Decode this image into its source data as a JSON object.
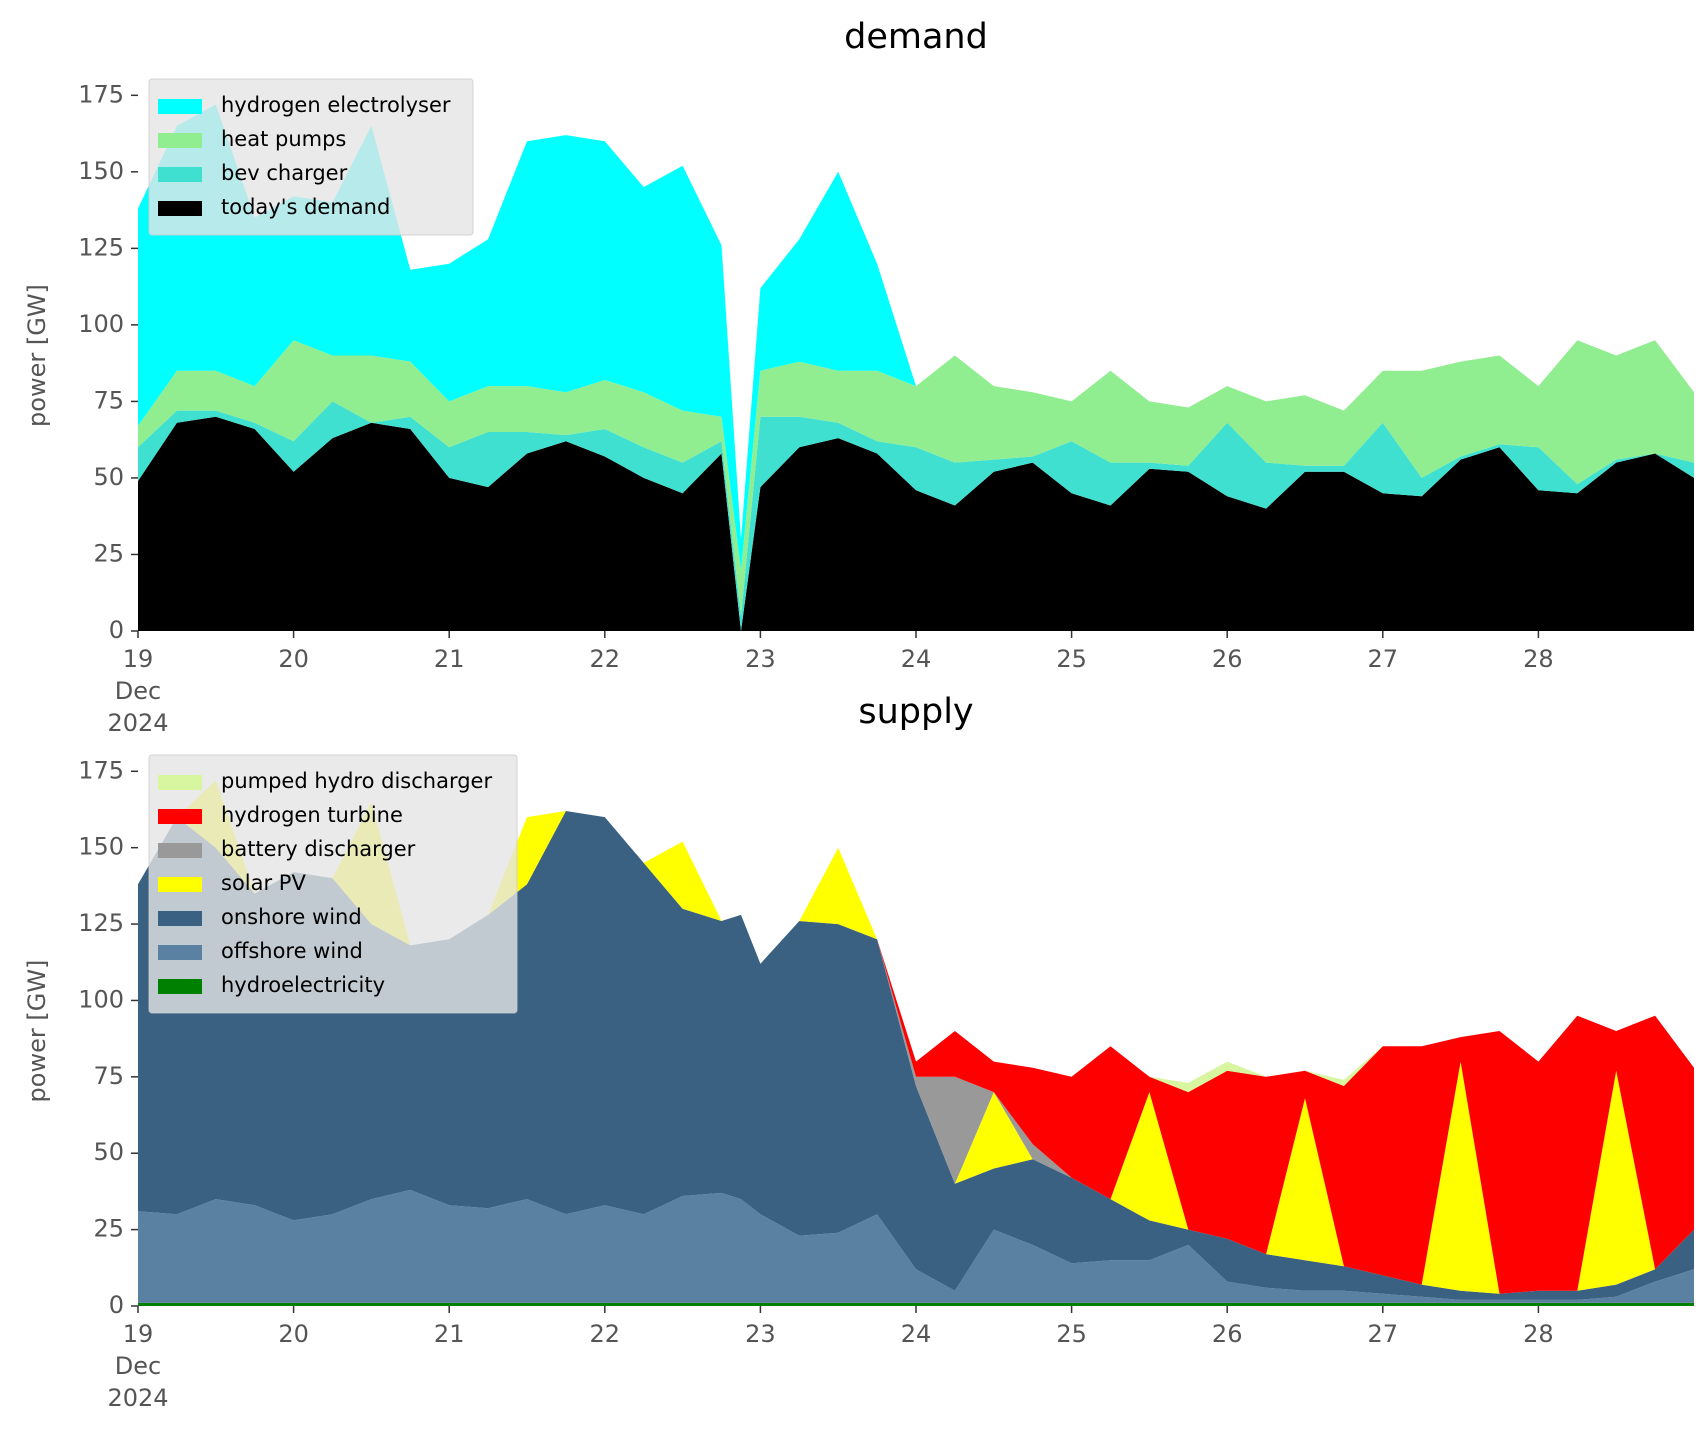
{
  "chart_data": [
    {
      "type": "stacked_area",
      "title": "demand",
      "y_label": "power [GW]",
      "legend": "upper left",
      "x": [
        19,
        19.25,
        19.5,
        19.75,
        20,
        20.25,
        20.5,
        20.75,
        21,
        21.25,
        21.5,
        21.75,
        22,
        22.25,
        22.5,
        22.75,
        22.875,
        23,
        23.25,
        23.5,
        23.75,
        24,
        24.25,
        24.5,
        24.75,
        25,
        25.25,
        25.5,
        25.75,
        26,
        26.25,
        26.5,
        26.75,
        27,
        27.25,
        27.5,
        27.75,
        28,
        28.25,
        28.5,
        28.75,
        29
      ],
      "xlim": [
        19,
        29
      ],
      "xticks": [
        {
          "value": 19,
          "label": "19\nDec\n2024"
        },
        20,
        21,
        22,
        23,
        24,
        25,
        26,
        27,
        28
      ],
      "ylim": [
        0,
        180
      ],
      "yticks": [
        0,
        25,
        50,
        75,
        100,
        125,
        150,
        175
      ],
      "series": [
        {
          "name": "hydrogen electrolyser",
          "color": "#00ffff",
          "values": [
            71,
            80,
            87,
            55,
            47,
            50,
            75,
            30,
            45,
            48,
            80,
            84,
            78,
            67,
            80,
            56,
            10,
            27,
            40,
            65,
            35,
            0,
            0,
            0,
            0,
            0,
            0,
            0,
            0,
            0,
            0,
            0,
            0,
            0,
            0,
            0,
            0,
            0,
            0,
            0,
            0,
            0
          ]
        },
        {
          "name": "heat pumps",
          "color": "#90ee90",
          "values": [
            7,
            13,
            13,
            12,
            33,
            15,
            22,
            18,
            15,
            15,
            15,
            14,
            16,
            18,
            17,
            8,
            15,
            15,
            18,
            17,
            23,
            20,
            35,
            24,
            21,
            13,
            30,
            20,
            19,
            12,
            20,
            23,
            18,
            17,
            35,
            31,
            29,
            20,
            47,
            34,
            37,
            23
          ]
        },
        {
          "name": "bev charger",
          "color": "#40e0d0",
          "values": [
            11,
            4,
            2,
            2,
            10,
            12,
            0,
            4,
            10,
            18,
            7,
            2,
            9,
            10,
            10,
            4,
            5,
            23,
            10,
            5,
            4,
            14,
            14,
            4,
            2,
            17,
            14,
            2,
            2,
            24,
            15,
            2,
            2,
            23,
            6,
            1,
            1,
            14,
            3,
            1,
            0,
            5
          ]
        },
        {
          "name": "today's demand",
          "color": "#000000",
          "values": [
            49,
            68,
            70,
            66,
            52,
            63,
            68,
            66,
            50,
            47,
            58,
            62,
            57,
            50,
            45,
            58,
            0,
            47,
            60,
            63,
            58,
            46,
            41,
            52,
            55,
            45,
            41,
            53,
            52,
            44,
            40,
            52,
            52,
            45,
            44,
            56,
            60,
            46,
            45,
            55,
            58,
            50
          ]
        }
      ]
    },
    {
      "type": "stacked_area",
      "title": "supply",
      "y_label": "power [GW]",
      "legend": "upper left",
      "x": [
        19,
        19.25,
        19.5,
        19.75,
        20,
        20.25,
        20.5,
        20.75,
        21,
        21.25,
        21.5,
        21.75,
        22,
        22.25,
        22.5,
        22.75,
        22.875,
        23,
        23.25,
        23.5,
        23.75,
        24,
        24.25,
        24.5,
        24.75,
        25,
        25.25,
        25.5,
        25.75,
        26,
        26.25,
        26.5,
        26.75,
        27,
        27.25,
        27.5,
        27.75,
        28,
        28.25,
        28.5,
        28.75,
        29
      ],
      "xlim": [
        19,
        29
      ],
      "xticks": [
        {
          "value": 19,
          "label": "19\nDec\n2024"
        },
        20,
        21,
        22,
        23,
        24,
        25,
        26,
        27,
        28
      ],
      "ylim": [
        0,
        180
      ],
      "yticks": [
        0,
        25,
        50,
        75,
        100,
        125,
        150,
        175
      ],
      "series": [
        {
          "name": "pumped hydro discharger",
          "color": "#d8f5a0",
          "values": [
            0,
            0,
            0,
            0,
            0,
            0,
            0,
            0,
            0,
            0,
            0,
            0,
            0,
            0,
            0,
            0,
            0,
            0,
            0,
            0,
            0,
            0,
            0,
            0,
            0,
            0,
            0,
            0,
            3,
            3,
            0,
            0,
            2,
            0,
            0,
            0,
            0,
            0,
            0,
            0,
            0,
            0
          ]
        },
        {
          "name": "hydrogen turbine",
          "color": "#ff0000",
          "values": [
            0,
            0,
            0,
            0,
            0,
            0,
            0,
            0,
            0,
            0,
            0,
            0,
            0,
            0,
            0,
            0,
            0,
            0,
            0,
            0,
            0,
            5,
            15,
            10,
            25,
            33,
            50,
            5,
            45,
            55,
            58,
            9,
            59,
            75,
            78,
            8,
            86,
            75,
            90,
            13,
            83,
            53
          ]
        },
        {
          "name": "battery discharger",
          "color": "#999999",
          "values": [
            0,
            0,
            0,
            0,
            0,
            0,
            0,
            0,
            0,
            0,
            0,
            0,
            0,
            0,
            0,
            0,
            0,
            0,
            0,
            0,
            0,
            3,
            35,
            0,
            5,
            0,
            0,
            0,
            0,
            0,
            0,
            0,
            0,
            0,
            0,
            0,
            0,
            0,
            0,
            0,
            0,
            0
          ]
        },
        {
          "name": "solar PV",
          "color": "#ffff00",
          "values": [
            0,
            0,
            22,
            0,
            0,
            0,
            40,
            0,
            0,
            0,
            22,
            0,
            0,
            0,
            22,
            0,
            0,
            0,
            0,
            25,
            0,
            0,
            0,
            25,
            0,
            0,
            0,
            42,
            0,
            0,
            0,
            53,
            0,
            0,
            0,
            75,
            0,
            0,
            0,
            70,
            0,
            0
          ]
        },
        {
          "name": "onshore wind",
          "color": "#3b6182",
          "values": [
            107,
            130,
            115,
            102,
            114,
            110,
            90,
            80,
            87,
            96,
            103,
            132,
            127,
            115,
            94,
            89,
            93,
            82,
            103,
            101,
            90,
            60,
            35,
            20,
            28,
            28,
            20,
            13,
            5,
            14,
            11,
            10,
            8,
            6,
            4,
            3,
            2,
            3,
            3,
            4,
            4,
            13
          ]
        },
        {
          "name": "offshore wind",
          "color": "#5b81a2",
          "values": [
            30,
            29,
            34,
            32,
            27,
            29,
            34,
            37,
            32,
            31,
            34,
            29,
            32,
            29,
            35,
            36,
            34,
            29,
            22,
            23,
            29,
            11,
            4,
            24,
            19,
            13,
            14,
            14,
            19,
            7,
            5,
            4,
            4,
            3,
            2,
            1,
            1,
            1,
            1,
            2,
            7,
            11
          ]
        },
        {
          "name": "hydroelectricity",
          "color": "#008000",
          "values": [
            1,
            1,
            1,
            1,
            1,
            1,
            1,
            1,
            1,
            1,
            1,
            1,
            1,
            1,
            1,
            1,
            1,
            1,
            1,
            1,
            1,
            1,
            1,
            1,
            1,
            1,
            1,
            1,
            1,
            1,
            1,
            1,
            1,
            1,
            1,
            1,
            1,
            1,
            1,
            1,
            1,
            1
          ]
        }
      ]
    }
  ]
}
